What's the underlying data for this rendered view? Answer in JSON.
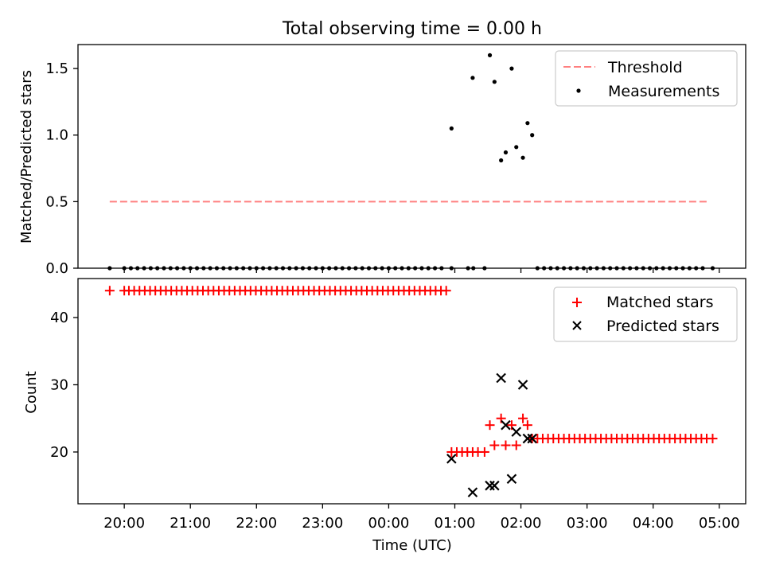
{
  "chart_data": [
    {
      "type": "scatter",
      "title": "Total observing time = 0.00 h",
      "xlabel": "",
      "ylabel": "Matched/Predicted stars",
      "ylim": [
        0,
        1.68
      ],
      "yticks": [
        "0.0",
        "0.5",
        "1.0",
        "1.5"
      ],
      "ytick_values": [
        0,
        0.5,
        1.0,
        1.5
      ],
      "legend_position": "top-right",
      "series": [
        {
          "name": "Threshold",
          "kind": "line",
          "style": "dashed",
          "color": "#ff7f7f",
          "x": [
            -0.22,
            8.85
          ],
          "y": [
            0.5,
            0.5
          ]
        },
        {
          "name": "Measurements",
          "kind": "scatter",
          "marker": "dot",
          "color": "#000000",
          "x": [
            -0.22,
            0,
            0.1,
            0.2,
            0.3,
            0.4,
            0.5,
            0.6,
            0.7,
            0.8,
            0.9,
            1.0,
            1.1,
            1.2,
            1.3,
            1.4,
            1.5,
            1.6,
            1.7,
            1.8,
            1.9,
            2.0,
            2.1,
            2.2,
            2.3,
            2.4,
            2.5,
            2.6,
            2.7,
            2.8,
            2.9,
            3.0,
            3.1,
            3.2,
            3.3,
            3.4,
            3.5,
            3.6,
            3.7,
            3.8,
            3.9,
            4.0,
            4.1,
            4.2,
            4.3,
            4.4,
            4.5,
            4.6,
            4.7,
            4.8,
            4.95,
            5.2,
            5.28,
            5.45,
            4.95,
            5.27,
            5.53,
            5.6,
            5.7,
            5.77,
            5.86,
            5.93,
            6.03,
            6.1,
            6.17,
            6.25,
            6.35,
            6.45,
            6.55,
            6.65,
            6.75,
            6.85,
            6.95,
            7.05,
            7.15,
            7.25,
            7.35,
            7.45,
            7.55,
            7.65,
            7.75,
            7.85,
            7.95,
            8.05,
            8.15,
            8.25,
            8.35,
            8.45,
            8.55,
            8.65,
            8.75,
            8.9
          ],
          "y": [
            0,
            0,
            0,
            0,
            0,
            0,
            0,
            0,
            0,
            0,
            0,
            0,
            0,
            0,
            0,
            0,
            0,
            0,
            0,
            0,
            0,
            0,
            0,
            0,
            0,
            0,
            0,
            0,
            0,
            0,
            0,
            0,
            0,
            0,
            0,
            0,
            0,
            0,
            0,
            0,
            0,
            0,
            0,
            0,
            0,
            0,
            0,
            0,
            0,
            0,
            0,
            0,
            0,
            0,
            1.05,
            1.43,
            1.6,
            1.4,
            0.81,
            0.87,
            1.5,
            0.91,
            0.83,
            1.09,
            1.0,
            0,
            0,
            0,
            0,
            0,
            0,
            0,
            0,
            0,
            0,
            0,
            0,
            0,
            0,
            0,
            0,
            0,
            0,
            0,
            0,
            0,
            0,
            0,
            0,
            0,
            0,
            0
          ]
        }
      ]
    },
    {
      "type": "scatter",
      "title": "",
      "xlabel": "Time (UTC)",
      "ylabel": "Count",
      "ylim": [
        12.3,
        45.8
      ],
      "yticks": [
        "20",
        "30",
        "40"
      ],
      "ytick_values": [
        20,
        30,
        40
      ],
      "x_axis": "time",
      "xlim": [
        -0.7,
        9.4
      ],
      "xtick_values": [
        0,
        1,
        2,
        3,
        4,
        5,
        6,
        7,
        8,
        9
      ],
      "xticks": [
        "20:00",
        "21:00",
        "22:00",
        "23:00",
        "00:00",
        "01:00",
        "02:00",
        "03:00",
        "04:00",
        "05:00"
      ],
      "legend_position": "top-right",
      "series": [
        {
          "name": "Matched stars",
          "kind": "scatter",
          "marker": "plus",
          "color": "#ff0000",
          "x": [
            -0.22,
            0,
            0.07,
            0.15,
            0.23,
            0.31,
            0.39,
            0.47,
            0.55,
            0.63,
            0.71,
            0.79,
            0.87,
            0.95,
            1.03,
            1.11,
            1.19,
            1.27,
            1.35,
            1.43,
            1.51,
            1.59,
            1.67,
            1.75,
            1.83,
            1.91,
            1.99,
            2.07,
            2.15,
            2.23,
            2.31,
            2.39,
            2.47,
            2.55,
            2.63,
            2.71,
            2.79,
            2.87,
            2.95,
            3.03,
            3.11,
            3.19,
            3.27,
            3.35,
            3.43,
            3.51,
            3.59,
            3.67,
            3.75,
            3.83,
            3.91,
            3.99,
            4.07,
            4.15,
            4.23,
            4.31,
            4.39,
            4.47,
            4.55,
            4.63,
            4.71,
            4.79,
            4.87,
            4.95,
            5.03,
            5.11,
            5.19,
            5.27,
            5.35,
            5.45,
            5.53,
            5.6,
            5.7,
            5.77,
            5.86,
            5.93,
            6.03,
            6.1,
            6.17,
            6.25,
            6.33,
            6.41,
            6.49,
            6.57,
            6.65,
            6.73,
            6.81,
            6.89,
            6.97,
            7.05,
            7.13,
            7.21,
            7.29,
            7.37,
            7.45,
            7.53,
            7.61,
            7.69,
            7.77,
            7.85,
            7.93,
            8.01,
            8.09,
            8.17,
            8.25,
            8.33,
            8.41,
            8.49,
            8.57,
            8.65,
            8.73,
            8.81,
            8.9
          ],
          "y": [
            44,
            44,
            44,
            44,
            44,
            44,
            44,
            44,
            44,
            44,
            44,
            44,
            44,
            44,
            44,
            44,
            44,
            44,
            44,
            44,
            44,
            44,
            44,
            44,
            44,
            44,
            44,
            44,
            44,
            44,
            44,
            44,
            44,
            44,
            44,
            44,
            44,
            44,
            44,
            44,
            44,
            44,
            44,
            44,
            44,
            44,
            44,
            44,
            44,
            44,
            44,
            44,
            44,
            44,
            44,
            44,
            44,
            44,
            44,
            44,
            44,
            44,
            44,
            20,
            20,
            20,
            20,
            20,
            20,
            20,
            24,
            21,
            25,
            21,
            24,
            21,
            25,
            24,
            22,
            22,
            22,
            22,
            22,
            22,
            22,
            22,
            22,
            22,
            22,
            22,
            22,
            22,
            22,
            22,
            22,
            22,
            22,
            22,
            22,
            22,
            22,
            22,
            22,
            22,
            22,
            22,
            22,
            22,
            22,
            22,
            22,
            22,
            22
          ]
        },
        {
          "name": "Predicted stars",
          "kind": "scatter",
          "marker": "x",
          "color": "#000000",
          "x": [
            4.95,
            5.27,
            5.53,
            5.6,
            5.7,
            5.77,
            5.86,
            5.93,
            6.03,
            6.1,
            6.17
          ],
          "y": [
            19,
            14,
            15,
            15,
            31,
            24,
            16,
            23,
            30,
            22,
            22
          ]
        }
      ]
    }
  ]
}
